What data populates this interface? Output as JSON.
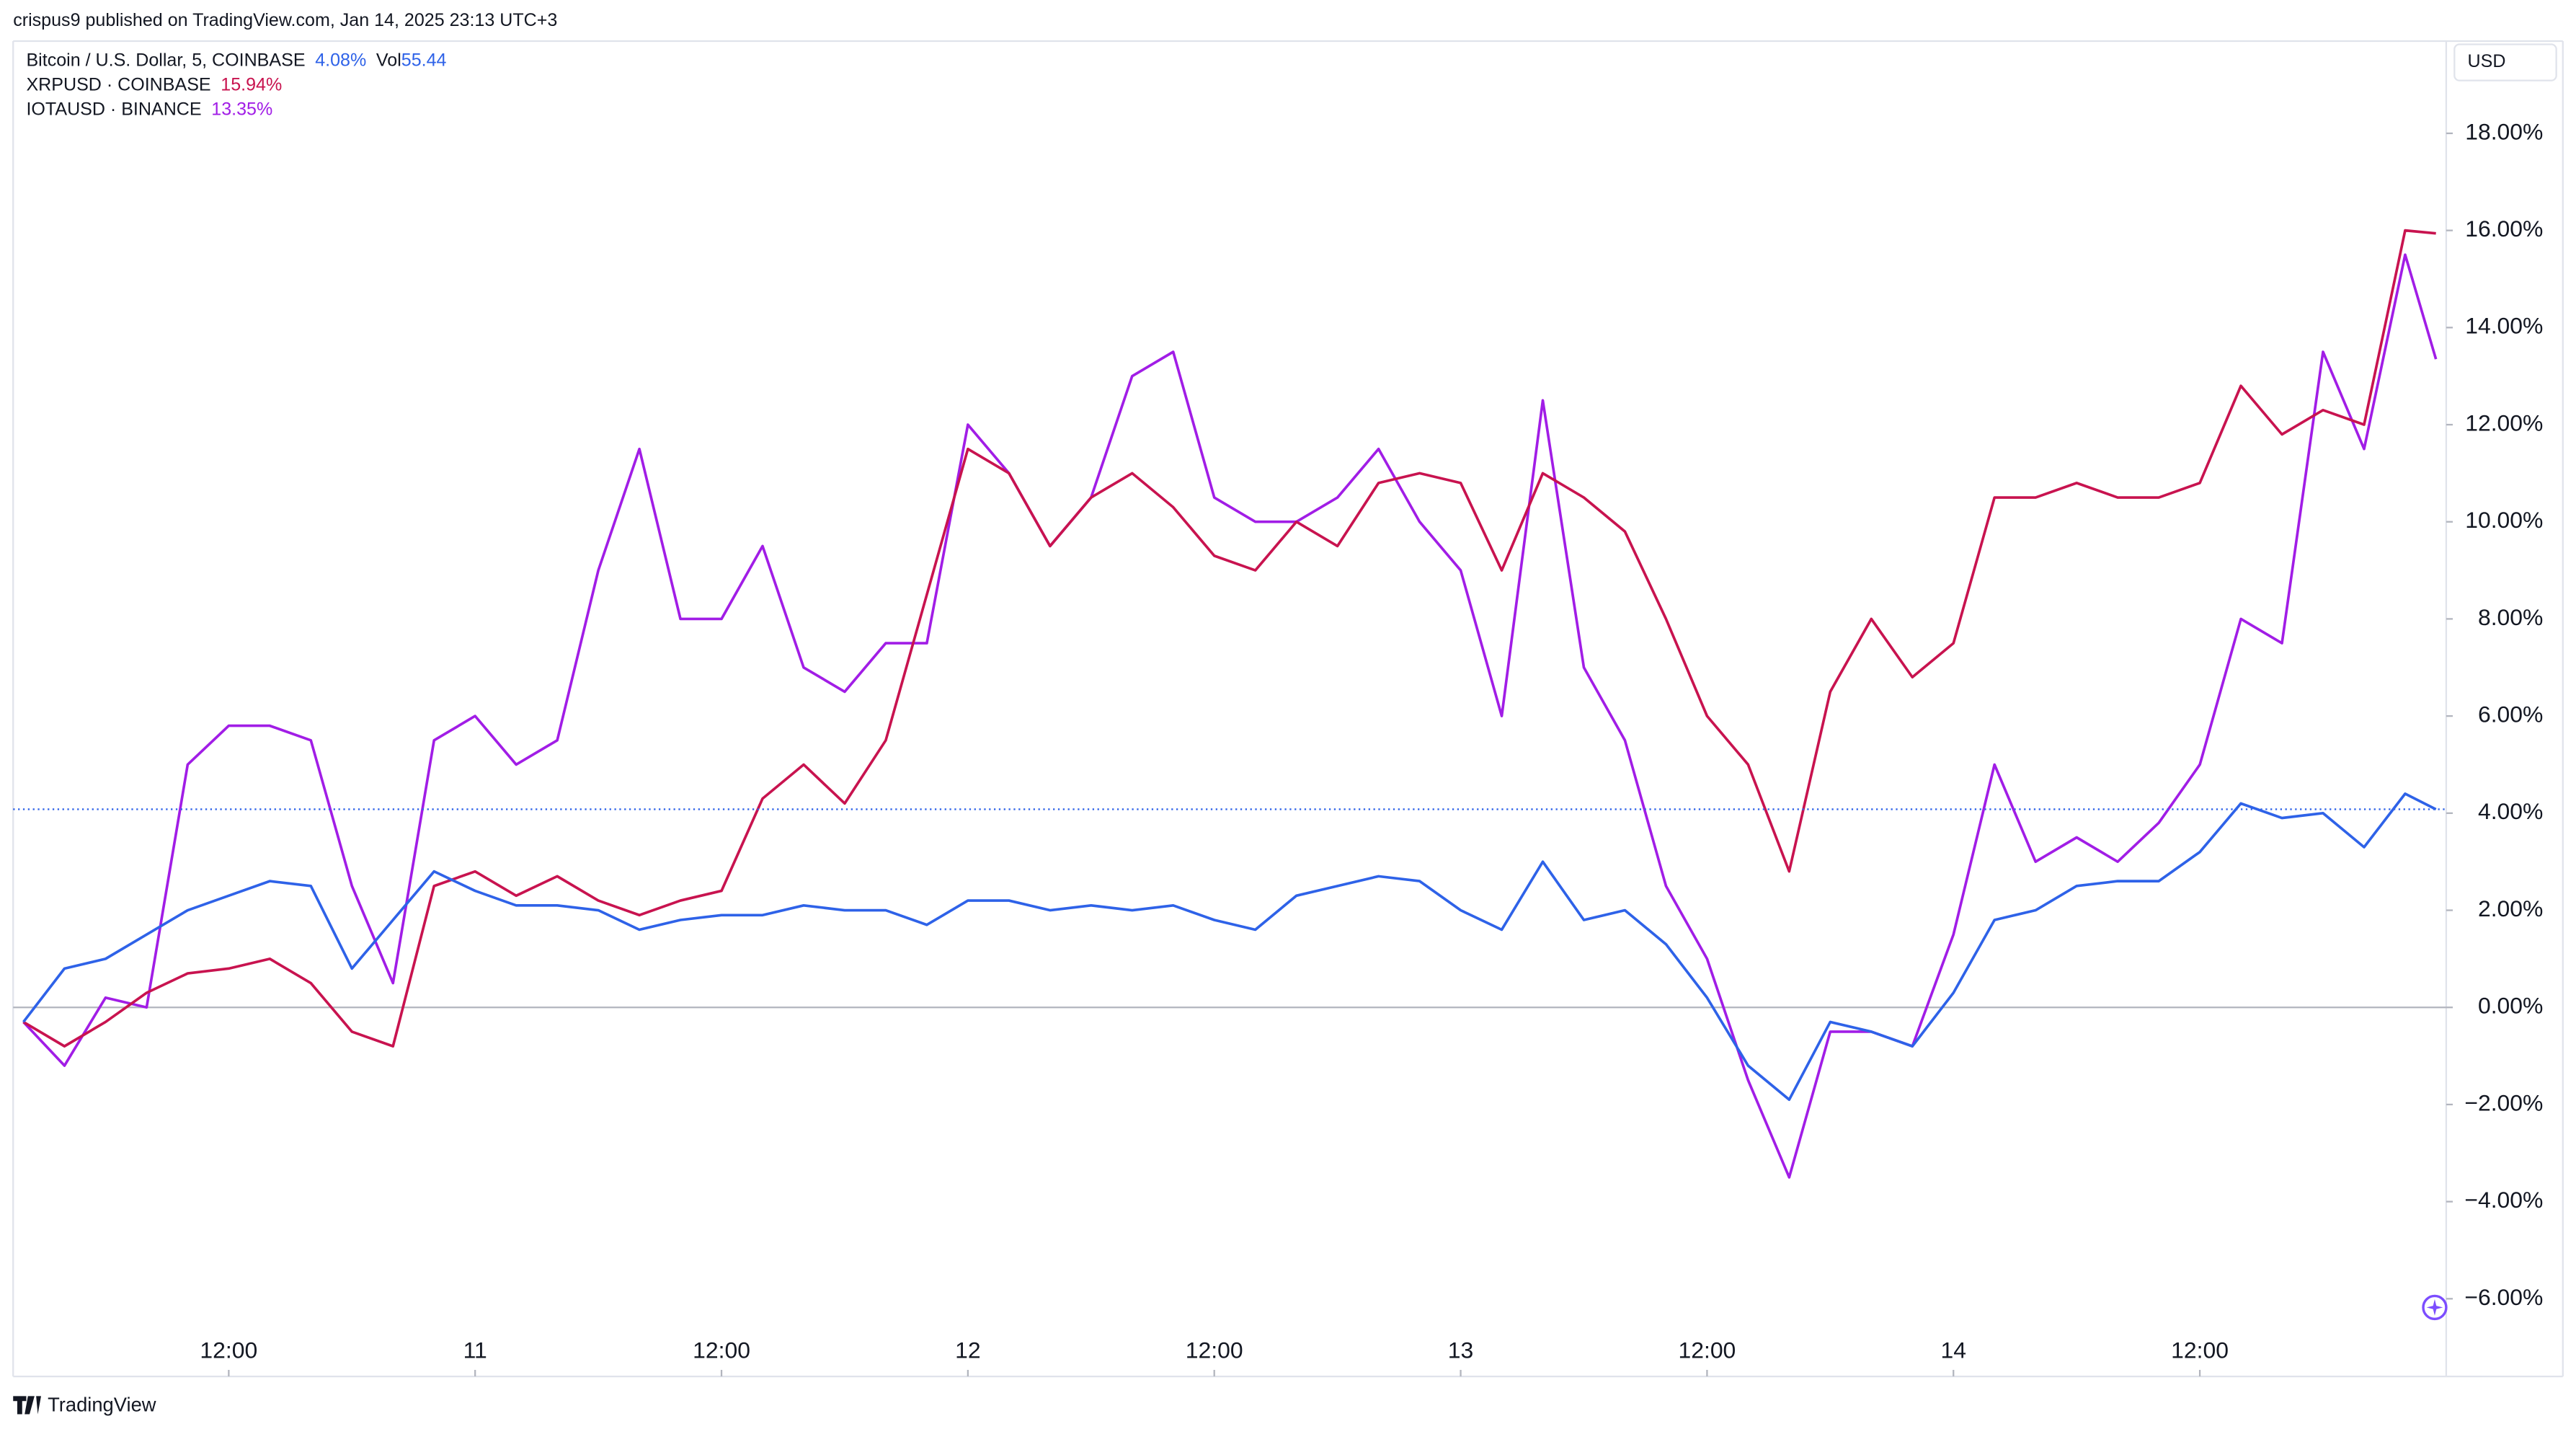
{
  "header": {
    "published": "crispus9 published on TradingView.com, Jan 14, 2025 23:13 UTC+3",
    "currency": "USD",
    "footer": "TradingView"
  },
  "chart_data": {
    "type": "line",
    "x": [
      2,
      4,
      6,
      8,
      10,
      12,
      14,
      16,
      18,
      20,
      22,
      24,
      26,
      28,
      30,
      32,
      34,
      36,
      38,
      40,
      42,
      44,
      46,
      48,
      50,
      52,
      54,
      56,
      58,
      60,
      62,
      64,
      66,
      68,
      70,
      72,
      74,
      76,
      78,
      80,
      82,
      84,
      86,
      88,
      90,
      92,
      94,
      96,
      98,
      100,
      102,
      104,
      106,
      108,
      110,
      112,
      114,
      116,
      118,
      119.5
    ],
    "xlim": [
      1.5,
      120
    ],
    "xticks": [
      {
        "value": 12,
        "label": "12:00"
      },
      {
        "value": 24,
        "label": "11"
      },
      {
        "value": 36,
        "label": "12:00"
      },
      {
        "value": 48,
        "label": "12"
      },
      {
        "value": 60,
        "label": "12:00"
      },
      {
        "value": 72,
        "label": "13"
      },
      {
        "value": 84,
        "label": "12:00"
      },
      {
        "value": 96,
        "label": "14"
      },
      {
        "value": 108,
        "label": "12:00"
      }
    ],
    "ylim": [
      -7.6,
      19.9
    ],
    "yticks": [
      {
        "value": -6,
        "label": "−6.00%"
      },
      {
        "value": -4,
        "label": "−4.00%"
      },
      {
        "value": -2,
        "label": "−2.00%"
      },
      {
        "value": 0,
        "label": "0.00%"
      },
      {
        "value": 2,
        "label": "2.00%"
      },
      {
        "value": 4,
        "label": "4.00%"
      },
      {
        "value": 6,
        "label": "6.00%"
      },
      {
        "value": 8,
        "label": "8.00%"
      },
      {
        "value": 10,
        "label": "10.00%"
      },
      {
        "value": 12,
        "label": "12.00%"
      },
      {
        "value": 14,
        "label": "14.00%"
      },
      {
        "value": 16,
        "label": "16.00%"
      },
      {
        "value": 18,
        "label": "18.00%"
      }
    ],
    "series": [
      {
        "name": "Bitcoin / U.S. Dollar, 5, COINBASE",
        "color": "#2e62e8",
        "last_label": "4.08%",
        "volume_label": "Vol",
        "volume": 55.44,
        "values": [
          -0.3,
          0.8,
          1.0,
          1.5,
          2.0,
          2.3,
          2.6,
          2.5,
          0.8,
          1.8,
          2.8,
          2.4,
          2.1,
          2.1,
          2.0,
          1.6,
          1.8,
          1.9,
          1.9,
          2.1,
          2.0,
          2.0,
          1.7,
          2.2,
          2.2,
          2.0,
          2.1,
          2.0,
          2.1,
          1.8,
          1.6,
          2.3,
          2.5,
          2.7,
          2.6,
          2.0,
          1.6,
          3.0,
          1.8,
          2.0,
          1.3,
          0.2,
          -1.2,
          -1.9,
          -0.3,
          -0.5,
          -0.8,
          0.3,
          1.8,
          2.0,
          2.5,
          2.6,
          2.6,
          3.2,
          4.2,
          3.9,
          4.0,
          3.3,
          4.4,
          4.08
        ]
      },
      {
        "name": "XRPUSD · COINBASE",
        "color": "#c8134f",
        "last_label": "15.94%",
        "values": [
          -0.3,
          -0.8,
          -0.3,
          0.3,
          0.7,
          0.8,
          1.0,
          0.5,
          -0.5,
          -0.8,
          2.5,
          2.8,
          2.3,
          2.7,
          2.2,
          1.9,
          2.2,
          2.4,
          4.3,
          5.0,
          4.2,
          5.5,
          8.5,
          11.5,
          11.0,
          9.5,
          10.5,
          11.0,
          10.3,
          9.3,
          9.0,
          10.0,
          9.5,
          10.8,
          11.0,
          10.8,
          9.0,
          11.0,
          10.5,
          9.8,
          8.0,
          6.0,
          5.0,
          2.8,
          6.5,
          8.0,
          6.8,
          7.5,
          10.5,
          10.5,
          10.8,
          10.5,
          10.5,
          10.8,
          12.8,
          11.8,
          12.3,
          12.0,
          16.0,
          15.94
        ]
      },
      {
        "name": "IOTAUSD · BINANCE",
        "color": "#a11de6",
        "last_label": "13.35%",
        "values": [
          -0.3,
          -1.2,
          0.2,
          0.0,
          5.0,
          5.8,
          5.8,
          5.5,
          2.5,
          0.5,
          5.5,
          6.0,
          5.0,
          5.5,
          9.0,
          11.5,
          8.0,
          8.0,
          9.5,
          7.0,
          6.5,
          7.5,
          7.5,
          12.0,
          11.0,
          9.5,
          10.5,
          13.0,
          13.5,
          10.5,
          10.0,
          10.0,
          10.5,
          11.5,
          10.0,
          9.0,
          6.0,
          12.5,
          7.0,
          5.5,
          2.5,
          1.0,
          -1.5,
          -3.5,
          -0.5,
          -0.5,
          -0.8,
          1.5,
          5.0,
          3.0,
          3.5,
          3.0,
          3.8,
          5.0,
          8.0,
          7.5,
          13.5,
          11.5,
          15.5,
          13.35
        ]
      }
    ]
  }
}
